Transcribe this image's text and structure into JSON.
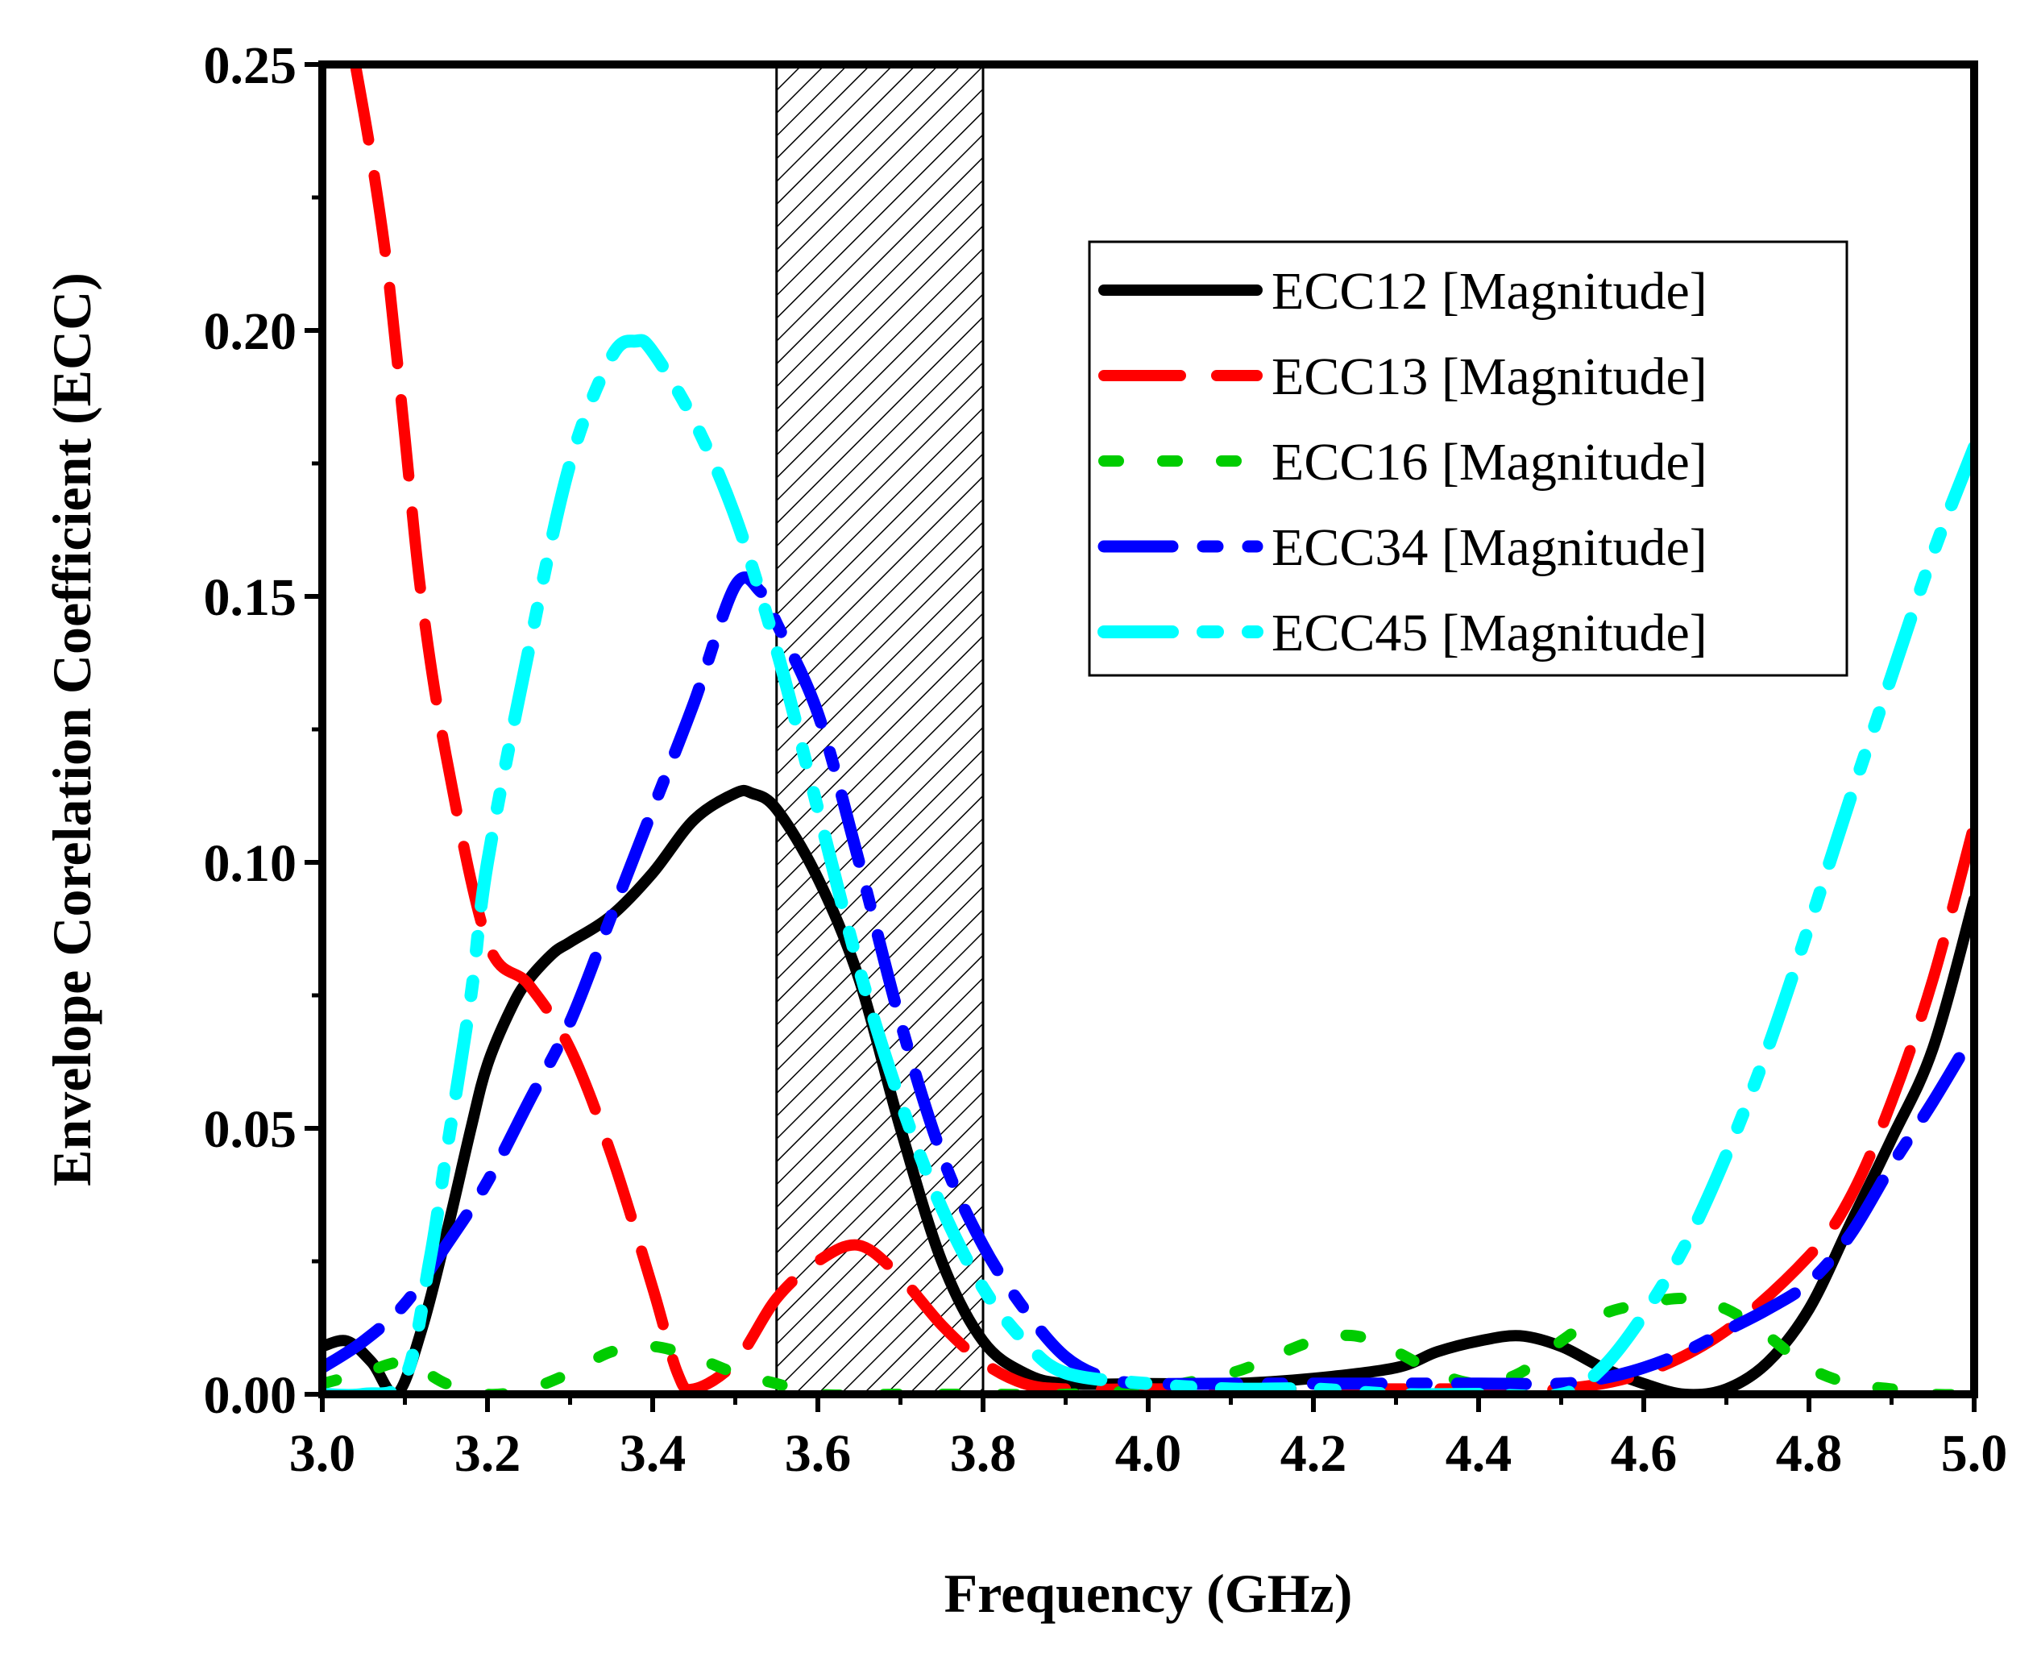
{
  "chart_data": {
    "type": "line",
    "title": "",
    "xlabel": "Frequency (GHz)",
    "ylabel": "Envelope Corelation Coefficient (ECC)",
    "xlim": [
      3.0,
      5.0
    ],
    "ylim": [
      0.0,
      0.25
    ],
    "xticks": [
      "3.0",
      "3.2",
      "3.4",
      "3.6",
      "3.8",
      "4.0",
      "4.2",
      "4.4",
      "4.6",
      "4.8",
      "5.0"
    ],
    "yticks": [
      "0.00",
      "0.05",
      "0.10",
      "0.15",
      "0.20",
      "0.25"
    ],
    "grid": false,
    "legend_position": "top-right",
    "shaded_band": {
      "x_start": 3.55,
      "x_end": 3.8,
      "pattern": "diagonal-hatch"
    },
    "series": [
      {
        "name": "ECC12 [Magnitude]",
        "color": "#000000",
        "style": "solid",
        "x": [
          3.0,
          3.03,
          3.06,
          3.09,
          3.12,
          3.15,
          3.18,
          3.2,
          3.23,
          3.25,
          3.28,
          3.3,
          3.35,
          3.4,
          3.45,
          3.5,
          3.52,
          3.55,
          3.6,
          3.65,
          3.7,
          3.75,
          3.8,
          3.85,
          3.9,
          4.0,
          4.1,
          4.2,
          4.3,
          4.35,
          4.4,
          4.45,
          4.5,
          4.55,
          4.6,
          4.65,
          4.7,
          4.75,
          4.8,
          4.85,
          4.9,
          4.95,
          5.0
        ],
        "values": [
          0.009,
          0.01,
          0.006,
          0.0,
          0.012,
          0.03,
          0.05,
          0.062,
          0.073,
          0.078,
          0.083,
          0.085,
          0.09,
          0.098,
          0.108,
          0.113,
          0.113,
          0.11,
          0.097,
          0.078,
          0.05,
          0.025,
          0.01,
          0.004,
          0.002,
          0.002,
          0.002,
          0.003,
          0.005,
          0.008,
          0.01,
          0.011,
          0.009,
          0.005,
          0.002,
          0.0,
          0.001,
          0.006,
          0.016,
          0.032,
          0.048,
          0.065,
          0.093
        ]
      },
      {
        "name": "ECC13 [Magnitude]",
        "color": "#ff0000",
        "style": "dash",
        "x": [
          3.04,
          3.06,
          3.08,
          3.1,
          3.12,
          3.15,
          3.2,
          3.25,
          3.3,
          3.35,
          3.4,
          3.43,
          3.45,
          3.5,
          3.55,
          3.6,
          3.65,
          3.7,
          3.75,
          3.8,
          3.85,
          3.9,
          4.0,
          4.1,
          4.2,
          4.3,
          4.4,
          4.5,
          4.6,
          4.7,
          4.8,
          4.85,
          4.9,
          4.95,
          5.0
        ],
        "values": [
          0.25,
          0.232,
          0.21,
          0.18,
          0.15,
          0.12,
          0.085,
          0.077,
          0.065,
          0.045,
          0.02,
          0.004,
          0.001,
          0.006,
          0.018,
          0.025,
          0.028,
          0.022,
          0.013,
          0.006,
          0.002,
          0.001,
          0.001,
          0.001,
          0.001,
          0.001,
          0.001,
          0.001,
          0.004,
          0.012,
          0.026,
          0.037,
          0.055,
          0.078,
          0.107
        ]
      },
      {
        "name": "ECC16 [Magnitude]",
        "color": "#00cc00",
        "style": "dot",
        "x": [
          3.0,
          3.05,
          3.1,
          3.15,
          3.2,
          3.25,
          3.3,
          3.35,
          3.4,
          3.45,
          3.5,
          3.55,
          3.6,
          3.7,
          3.8,
          3.9,
          4.0,
          4.1,
          4.15,
          4.2,
          4.25,
          4.3,
          4.35,
          4.4,
          4.45,
          4.5,
          4.55,
          4.6,
          4.65,
          4.7,
          4.75,
          4.8,
          4.85,
          4.9,
          4.95,
          5.0
        ],
        "values": [
          0.002,
          0.004,
          0.006,
          0.002,
          0.0,
          0.001,
          0.004,
          0.008,
          0.009,
          0.007,
          0.004,
          0.002,
          0.0,
          0.0,
          0.0,
          0.0,
          0.001,
          0.004,
          0.007,
          0.01,
          0.011,
          0.008,
          0.004,
          0.002,
          0.004,
          0.01,
          0.015,
          0.017,
          0.018,
          0.016,
          0.011,
          0.005,
          0.002,
          0.001,
          0.0,
          0.0
        ]
      },
      {
        "name": "ECC34 [Magnitude]",
        "color": "#0000ff",
        "style": "dash-dot",
        "x": [
          3.0,
          3.05,
          3.1,
          3.15,
          3.2,
          3.25,
          3.3,
          3.35,
          3.4,
          3.45,
          3.5,
          3.53,
          3.55,
          3.6,
          3.65,
          3.7,
          3.75,
          3.8,
          3.85,
          3.9,
          3.95,
          4.0,
          4.1,
          4.2,
          4.3,
          4.4,
          4.5,
          4.55,
          4.6,
          4.65,
          4.7,
          4.75,
          4.8,
          4.85,
          4.9,
          4.95,
          5.0
        ],
        "values": [
          0.005,
          0.01,
          0.017,
          0.028,
          0.04,
          0.055,
          0.07,
          0.09,
          0.11,
          0.13,
          0.152,
          0.151,
          0.145,
          0.128,
          0.1,
          0.07,
          0.045,
          0.028,
          0.016,
          0.007,
          0.003,
          0.002,
          0.002,
          0.002,
          0.002,
          0.002,
          0.002,
          0.003,
          0.005,
          0.008,
          0.012,
          0.016,
          0.021,
          0.03,
          0.043,
          0.055,
          0.068
        ]
      },
      {
        "name": "ECC45 [Magnitude]",
        "color": "#00ffff",
        "style": "dash-dot-dot",
        "x": [
          3.0,
          3.05,
          3.1,
          3.13,
          3.15,
          3.18,
          3.2,
          3.25,
          3.3,
          3.35,
          3.38,
          3.4,
          3.45,
          3.5,
          3.55,
          3.6,
          3.65,
          3.7,
          3.75,
          3.8,
          3.85,
          3.9,
          4.0,
          4.1,
          4.2,
          4.3,
          4.4,
          4.5,
          4.55,
          4.6,
          4.65,
          4.7,
          4.75,
          4.8,
          4.85,
          4.9,
          4.95,
          5.0
        ],
        "values": [
          0.0,
          0.0,
          0.003,
          0.025,
          0.045,
          0.075,
          0.1,
          0.14,
          0.175,
          0.195,
          0.198,
          0.196,
          0.183,
          0.165,
          0.14,
          0.11,
          0.08,
          0.055,
          0.035,
          0.02,
          0.01,
          0.004,
          0.002,
          0.001,
          0.001,
          0.0,
          0.0,
          0.0,
          0.005,
          0.015,
          0.028,
          0.045,
          0.065,
          0.088,
          0.112,
          0.135,
          0.158,
          0.178
        ]
      }
    ]
  }
}
